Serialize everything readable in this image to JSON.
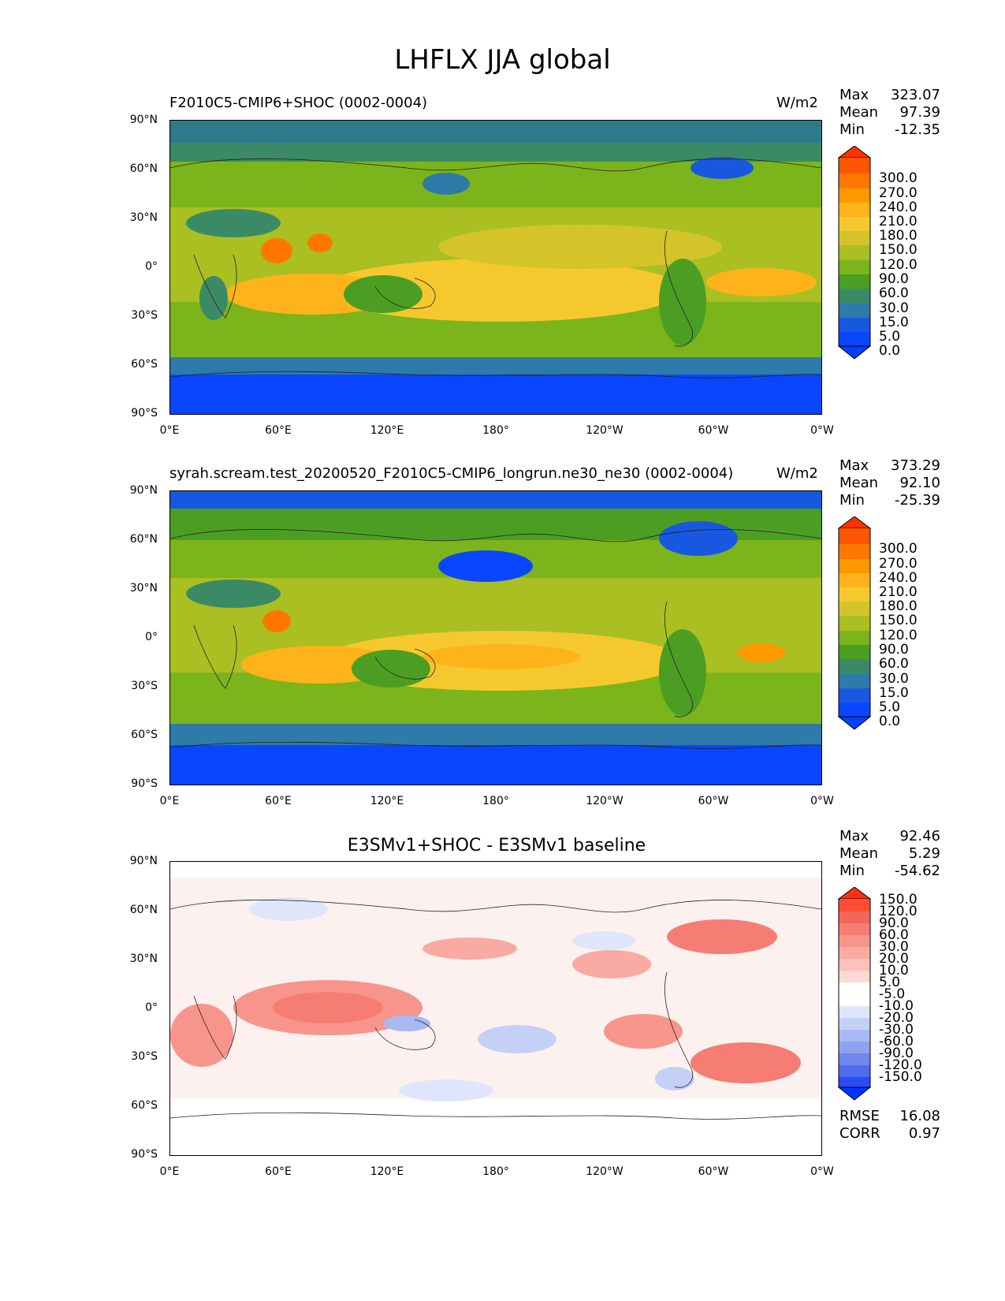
{
  "figure": {
    "title": "LHFLX JJA global",
    "x_ticks": [
      "0°E",
      "60°E",
      "120°E",
      "180°",
      "120°W",
      "60°W",
      "0°W"
    ],
    "y_ticks": [
      "90°N",
      "60°N",
      "30°N",
      "0°",
      "30°S",
      "60°S",
      "90°S"
    ]
  },
  "panels": [
    {
      "title_left": "F2010C5-CMIP6+SHOC (0002-0004)",
      "title_center": "",
      "units": "W/m2",
      "stats": {
        "max_label": "Max",
        "max": "323.07",
        "mean_label": "Mean",
        "mean": "97.39",
        "min_label": "Min",
        "min": "-12.35"
      },
      "colorbar": {
        "labels": [
          "300.0",
          "270.0",
          "240.0",
          "210.0",
          "180.0",
          "150.0",
          "120.0",
          "90.0",
          "60.0",
          "30.0",
          "15.0",
          "5.0",
          "0.0"
        ],
        "colors": [
          "#ff3300",
          "#ff5500",
          "#ff7700",
          "#ff9900",
          "#ffb31a",
          "#f5c92e",
          "#d4c42a",
          "#aabf22",
          "#7cb41c",
          "#4c9e22",
          "#3a8a66",
          "#2e7aa8",
          "#1858e0",
          "#0040ff"
        ]
      }
    },
    {
      "title_left": "syrah.scream.test_20200520_F2010C5-CMIP6_longrun.ne30_ne30 (0002-0004)",
      "title_center": "",
      "units": "W/m2",
      "stats": {
        "max_label": "Max",
        "max": "373.29",
        "mean_label": "Mean",
        "mean": "92.10",
        "min_label": "Min",
        "min": "-25.39"
      },
      "colorbar": {
        "labels": [
          "300.0",
          "270.0",
          "240.0",
          "210.0",
          "180.0",
          "150.0",
          "120.0",
          "90.0",
          "60.0",
          "30.0",
          "15.0",
          "5.0",
          "0.0"
        ],
        "colors": [
          "#ff3300",
          "#ff5500",
          "#ff7700",
          "#ff9900",
          "#ffb31a",
          "#f5c92e",
          "#d4c42a",
          "#aabf22",
          "#7cb41c",
          "#4c9e22",
          "#3a8a66",
          "#2e7aa8",
          "#1858e0",
          "#0040ff"
        ]
      }
    },
    {
      "title_left": "",
      "title_center": "E3SMv1+SHOC - E3SMv1 baseline",
      "units": "",
      "stats": {
        "max_label": "Max",
        "max": "92.46",
        "mean_label": "Mean",
        "mean": "5.29",
        "min_label": "Min",
        "min": "-54.62"
      },
      "extra": {
        "rmse_label": "RMSE",
        "rmse": "16.08",
        "corr_label": "CORR",
        "corr": "0.97"
      },
      "colorbar": {
        "labels": [
          "150.0",
          "120.0",
          "90.0",
          "60.0",
          "30.0",
          "20.0",
          "10.0",
          "5.0",
          "-5.0",
          "-10.0",
          "-20.0",
          "-30.0",
          "-60.0",
          "-90.0",
          "-120.0",
          "-150.0"
        ],
        "colors": [
          "#ff3010",
          "#ff4d33",
          "#f5665a",
          "#f57d73",
          "#f7958c",
          "#f9aaa3",
          "#fbc1bb",
          "#fdd8d4",
          "#ffffff",
          "#dfe6fb",
          "#c5d0f7",
          "#a9b9f2",
          "#8ea2ee",
          "#6f88ec",
          "#4f6cf0",
          "#2a4cf5",
          "#0033ff"
        ]
      }
    }
  ]
}
